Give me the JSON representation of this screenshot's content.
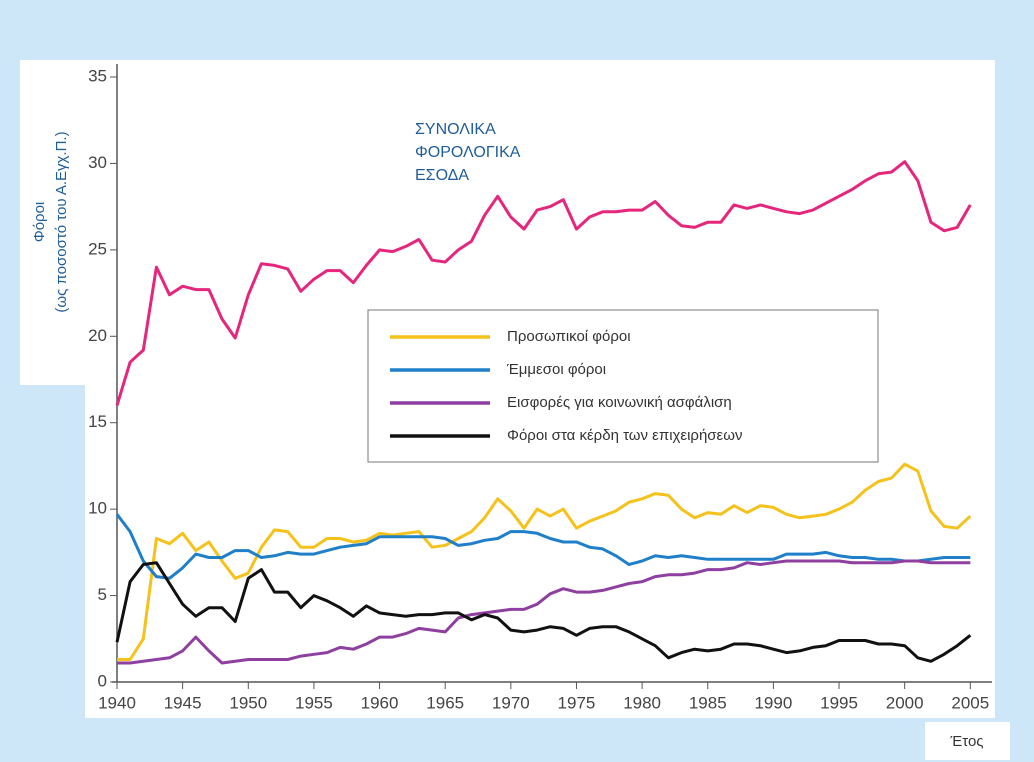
{
  "chart_data": {
    "type": "line",
    "ylabel": [
      "Φόροι",
      "(ως ποσοστό του Α.Εγχ.Π.)"
    ],
    "xlabel": "Έτος",
    "annotation": [
      "ΣΥΝΟΛΙΚΑ",
      "ΦΟΡΟΛΟΓΙΚΑ",
      "ΕΣΟΔΑ"
    ],
    "x": [
      1940,
      1941,
      1942,
      1943,
      1944,
      1945,
      1946,
      1947,
      1948,
      1949,
      1950,
      1951,
      1952,
      1953,
      1954,
      1955,
      1956,
      1957,
      1958,
      1959,
      1960,
      1961,
      1962,
      1963,
      1964,
      1965,
      1966,
      1967,
      1968,
      1969,
      1970,
      1971,
      1972,
      1973,
      1974,
      1975,
      1976,
      1977,
      1978,
      1979,
      1980,
      1981,
      1982,
      1983,
      1984,
      1985,
      1986,
      1987,
      1988,
      1989,
      1990,
      1991,
      1992,
      1993,
      1994,
      1995,
      1996,
      1997,
      1998,
      1999,
      2000,
      2001,
      2002,
      2003,
      2004,
      2005
    ],
    "xlim": [
      1940,
      2006.5
    ],
    "xticks": [
      1940,
      1945,
      1950,
      1955,
      1960,
      1965,
      1970,
      1975,
      1980,
      1985,
      1990,
      1995,
      2000,
      2005
    ],
    "ylim": [
      0,
      35
    ],
    "yticks": [
      0,
      5,
      10,
      15,
      20,
      25,
      30,
      35
    ],
    "legend": "center",
    "series": [
      {
        "color": "#e6267c",
        "legend": false,
        "values": [
          16,
          18.5,
          19.2,
          24,
          22.4,
          22.9,
          22.7,
          22.7,
          21,
          19.9,
          22.4,
          24.2,
          24.1,
          23.9,
          22.6,
          23.3,
          23.8,
          23.8,
          23.1,
          24.1,
          25,
          24.9,
          25.2,
          25.6,
          24.4,
          24.3,
          25,
          25.5,
          27,
          28.1,
          26.9,
          26.2,
          27.3,
          27.5,
          27.9,
          26.2,
          26.9,
          27.2,
          27.2,
          27.3,
          27.3,
          27.8,
          27,
          26.4,
          26.3,
          26.6,
          26.6,
          27.6,
          27.4,
          27.6,
          27.4,
          27.2,
          27.1,
          27.3,
          27.7,
          28.1,
          28.5,
          29,
          29.4,
          29.5,
          30.1,
          29,
          26.6,
          26.1,
          26.3,
          27.6
        ]
      },
      {
        "name": "Προσωπικοί φόροι",
        "color": "#f5c21b",
        "values": [
          1.3,
          1.3,
          2.5,
          8.3,
          8.0,
          8.6,
          7.6,
          8.1,
          7.0,
          6.0,
          6.3,
          7.8,
          8.8,
          8.7,
          7.8,
          7.8,
          8.3,
          8.3,
          8.1,
          8.2,
          8.6,
          8.5,
          8.6,
          8.7,
          7.8,
          7.9,
          8.3,
          8.7,
          9.5,
          10.6,
          9.9,
          8.9,
          10.0,
          9.6,
          10.0,
          8.9,
          9.3,
          9.6,
          9.9,
          10.4,
          10.6,
          10.9,
          10.8,
          10.0,
          9.5,
          9.8,
          9.7,
          10.2,
          9.8,
          10.2,
          10.1,
          9.7,
          9.5,
          9.6,
          9.7,
          10.0,
          10.4,
          11.1,
          11.6,
          11.8,
          12.6,
          12.2,
          9.9,
          9.0,
          8.9,
          9.6
        ]
      },
      {
        "name": "Έμμεσοι φόροι",
        "color": "#1f7fc8",
        "values": [
          9.7,
          8.7,
          7.0,
          6.1,
          6.0,
          6.6,
          7.4,
          7.2,
          7.2,
          7.6,
          7.6,
          7.2,
          7.3,
          7.5,
          7.4,
          7.4,
          7.6,
          7.8,
          7.9,
          8.0,
          8.4,
          8.4,
          8.4,
          8.4,
          8.4,
          8.3,
          7.9,
          8.0,
          8.2,
          8.3,
          8.7,
          8.7,
          8.6,
          8.3,
          8.1,
          8.1,
          7.8,
          7.7,
          7.3,
          6.8,
          7.0,
          7.3,
          7.2,
          7.3,
          7.2,
          7.1,
          7.1,
          7.1,
          7.1,
          7.1,
          7.1,
          7.4,
          7.4,
          7.4,
          7.5,
          7.3,
          7.2,
          7.2,
          7.1,
          7.1,
          7.0,
          7.0,
          7.1,
          7.2,
          7.2,
          7.2
        ]
      },
      {
        "name": "Εισφορές για κοινωνική ασφάλιση",
        "color": "#8e3fa0",
        "values": [
          1.1,
          1.1,
          1.2,
          1.3,
          1.4,
          1.8,
          2.6,
          1.8,
          1.1,
          1.2,
          1.3,
          1.3,
          1.3,
          1.3,
          1.5,
          1.6,
          1.7,
          2.0,
          1.9,
          2.2,
          2.6,
          2.6,
          2.8,
          3.1,
          3.0,
          2.9,
          3.7,
          3.9,
          4.0,
          4.1,
          4.2,
          4.2,
          4.5,
          5.1,
          5.4,
          5.2,
          5.2,
          5.3,
          5.5,
          5.7,
          5.8,
          6.1,
          6.2,
          6.2,
          6.3,
          6.5,
          6.5,
          6.6,
          6.9,
          6.8,
          6.9,
          7.0,
          7.0,
          7.0,
          7.0,
          7.0,
          6.9,
          6.9,
          6.9,
          6.9,
          7.0,
          7.0,
          6.9,
          6.9,
          6.9,
          6.9
        ]
      },
      {
        "name": "Φόροι στα κέρδη των επιχειρήσεων",
        "color": "#111111",
        "values": [
          2.3,
          5.8,
          6.8,
          6.9,
          5.7,
          4.5,
          3.8,
          4.3,
          4.3,
          3.5,
          6.0,
          6.5,
          5.2,
          5.2,
          4.3,
          5.0,
          4.7,
          4.3,
          3.8,
          4.4,
          4.0,
          3.9,
          3.8,
          3.9,
          3.9,
          4.0,
          4.0,
          3.6,
          3.9,
          3.7,
          3.0,
          2.9,
          3.0,
          3.2,
          3.1,
          2.7,
          3.1,
          3.2,
          3.2,
          2.9,
          2.5,
          2.1,
          1.4,
          1.7,
          1.9,
          1.8,
          1.9,
          2.2,
          2.2,
          2.1,
          1.9,
          1.7,
          1.8,
          2.0,
          2.1,
          2.4,
          2.4,
          2.4,
          2.2,
          2.2,
          2.1,
          1.4,
          1.2,
          1.6,
          2.1,
          2.7
        ]
      }
    ]
  }
}
